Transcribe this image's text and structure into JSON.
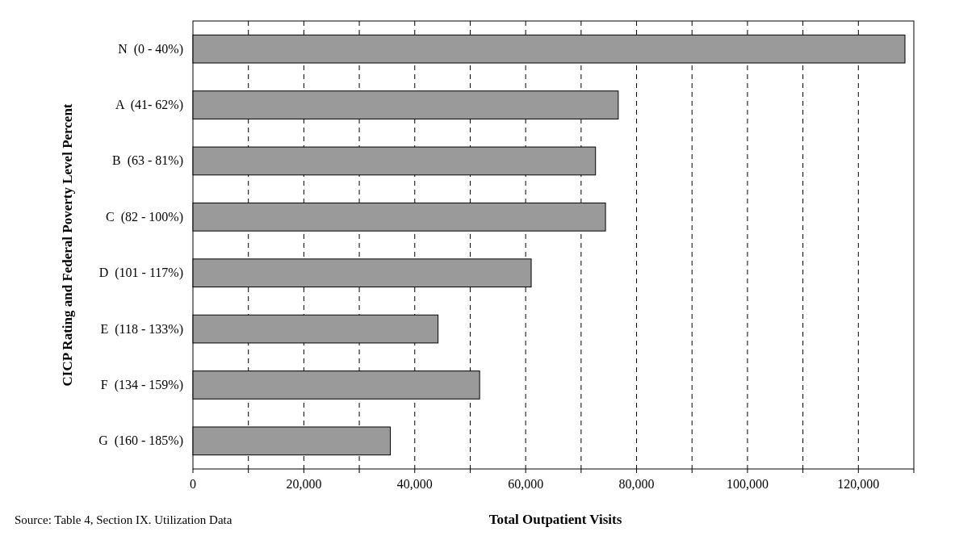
{
  "chart_data": {
    "type": "bar",
    "orientation": "horizontal",
    "xlabel": "Total Outpatient Visits",
    "ylabel": "CICP Rating and Federal Poverty Level Percent",
    "categories": [
      "N  (0 - 40%)",
      "A  (41- 62%)",
      "B  (63 - 81%)",
      "C  (82 - 100%)",
      "D  (101 - 117%)",
      "E  (118 - 133%)",
      "F  (134 - 159%)",
      "G  (160 - 185%)"
    ],
    "values": [
      128400,
      76700,
      72600,
      74400,
      61000,
      44200,
      51700,
      35600
    ],
    "color": "#9a9a9a",
    "xlim": [
      0,
      130000
    ],
    "xticks": [
      0,
      {
        "value": 10000,
        "label": null
      },
      "20,000",
      {
        "value": 30000,
        "label": null
      },
      {
        "value": 40000,
        "label": "40,000"
      },
      {
        "value": 50000,
        "label": null
      },
      {
        "value": 60000,
        "label": "60,000"
      },
      {
        "value": 70000,
        "label": null
      },
      {
        "value": 80000,
        "label": "80,000"
      },
      {
        "value": 90000,
        "label": null
      },
      {
        "value": 100000,
        "label": "100,000"
      },
      {
        "value": 110000,
        "label": null
      },
      {
        "value": 120000,
        "label": "120,000"
      },
      {
        "value": 130000,
        "label": null
      }
    ],
    "grid": "x",
    "line_style": "dashed",
    "annotations": [
      "Source:  Table 4, Section IX. Utilization Data"
    ]
  }
}
